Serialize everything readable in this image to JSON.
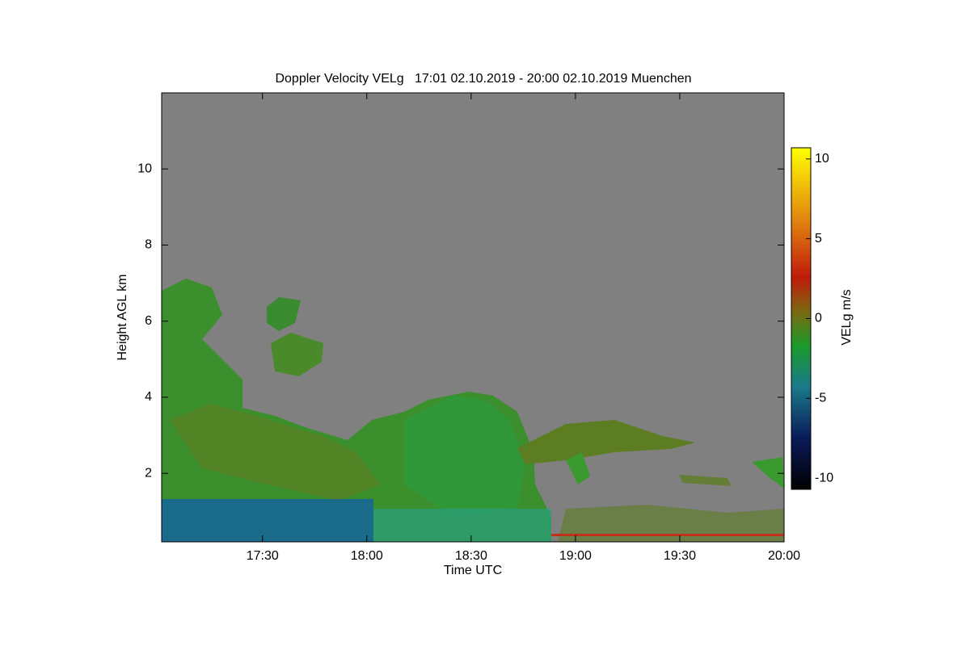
{
  "chart_data": {
    "type": "heatmap",
    "title": "Doppler Velocity VELg   17:01 02.10.2019 - 20:00 02.10.2019 Muenchen",
    "xlabel": "Time UTC",
    "ylabel": "Height AGL km",
    "colorbar_label": "VELg m/s",
    "xlim": [
      "17:01",
      "20:00"
    ],
    "xticks": [
      "17:30",
      "18:00",
      "18:30",
      "19:00",
      "19:30",
      "20:00"
    ],
    "ylim": [
      0.2,
      12
    ],
    "yticks": [
      2,
      4,
      6,
      8,
      10
    ],
    "clim": [
      -10.7,
      10.7
    ],
    "cticks": [
      -10,
      -5,
      0,
      5,
      10
    ],
    "background": "#808080"
  }
}
